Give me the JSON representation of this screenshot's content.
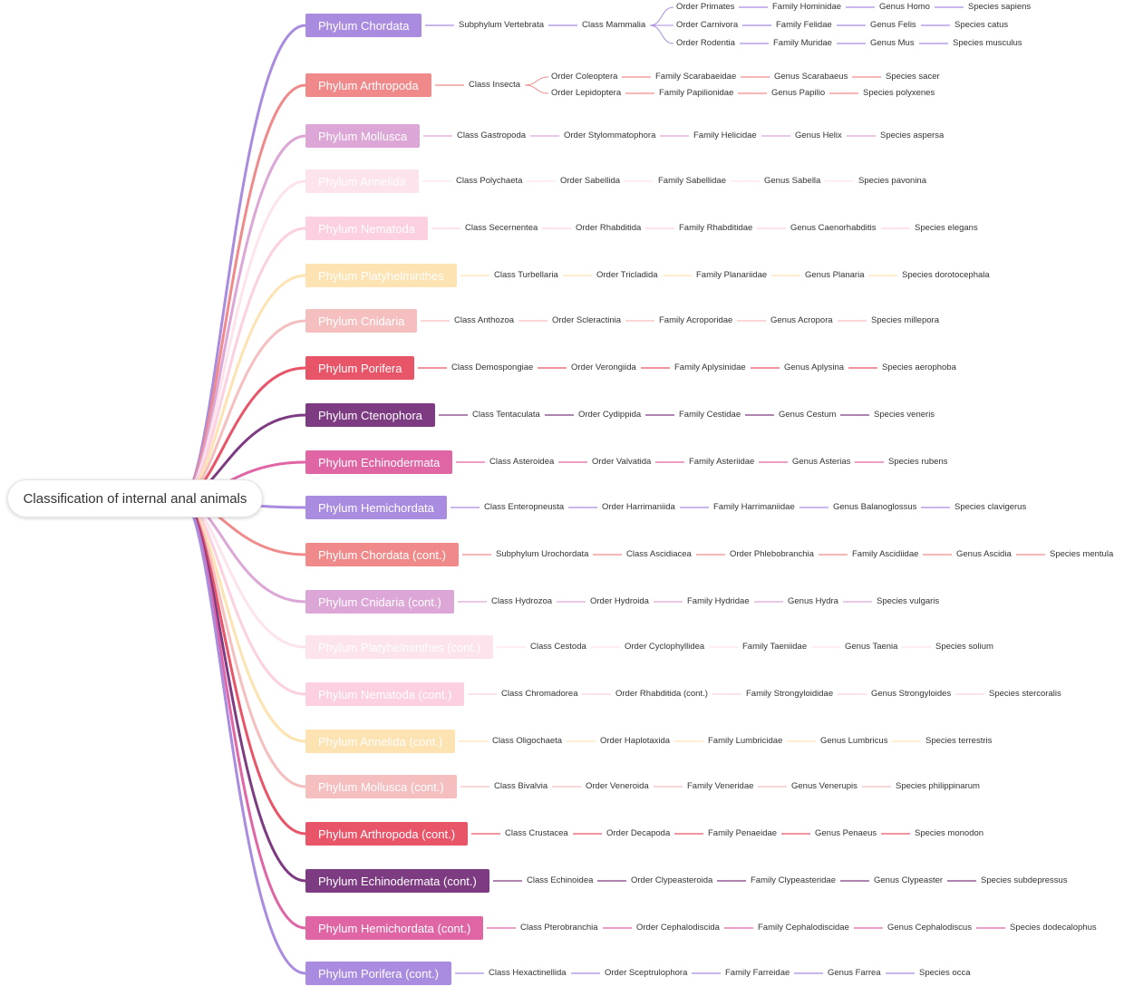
{
  "root": {
    "label": "Classification of internal anal animals"
  },
  "colors": {
    "c1": "#a98be0",
    "c2": "#f08a8a",
    "c3": "#dca6d6",
    "c4": "#fde3ec",
    "c5": "#fcd0e0",
    "c6": "#fde2b2",
    "c7": "#f5bfbf",
    "c8": "#e85468",
    "c9": "#7d3c82",
    "c10": "#e065a5"
  },
  "branches": [
    {
      "label": "Phylum Chordata",
      "color": "#a98be0",
      "chain": [
        "Subphylum Vertebrata",
        "Class Mammalia"
      ],
      "fork": [
        [
          "Order Primates",
          "Family Hominidae",
          "Genus Homo",
          "Species sapiens"
        ],
        [
          "Order Carnivora",
          "Family Felidae",
          "Genus Felis",
          "Species catus"
        ],
        [
          "Order Rodentia",
          "Family Muridae",
          "Genus Mus",
          "Species musculus"
        ]
      ]
    },
    {
      "label": "Phylum Arthropoda",
      "color": "#f08a8a",
      "chain": [
        "Class Insecta"
      ],
      "fork": [
        [
          "Order Coleoptera",
          "Family Scarabaeidae",
          "Genus Scarabaeus",
          "Species sacer"
        ],
        [
          "Order Lepidoptera",
          "Family Papilionidae",
          "Genus Papilio",
          "Species polyxenes"
        ]
      ]
    },
    {
      "label": "Phylum Mollusca",
      "color": "#dca6d6",
      "chain": [
        "Class Gastropoda",
        "Order Stylommatophora",
        "Family Helicidae",
        "Genus Helix",
        "Species aspersa"
      ]
    },
    {
      "label": "Phylum Annelida",
      "color": "#fde3ec",
      "chain": [
        "Class Polychaeta",
        "Order Sabellida",
        "Family Sabellidae",
        "Genus Sabella",
        "Species pavonina"
      ]
    },
    {
      "label": "Phylum Nematoda",
      "color": "#fcd0e0",
      "chain": [
        "Class Secernentea",
        "Order Rhabditida",
        "Family Rhabditidae",
        "Genus Caenorhabditis",
        "Species elegans"
      ]
    },
    {
      "label": "Phylum Platyhelminthes",
      "color": "#fde2b2",
      "chain": [
        "Class Turbellaria",
        "Order Tricladida",
        "Family Planariidae",
        "Genus Planaria",
        "Species dorotocephala"
      ]
    },
    {
      "label": "Phylum Cnidaria",
      "color": "#f5bfbf",
      "chain": [
        "Class Anthozoa",
        "Order Scleractinia",
        "Family Acroporidae",
        "Genus Acropora",
        "Species millepora"
      ]
    },
    {
      "label": "Phylum Porifera",
      "color": "#e85468",
      "chain": [
        "Class Demospongiae",
        "Order Verongiida",
        "Family Aplysinidae",
        "Genus Aplysina",
        "Species aerophoba"
      ]
    },
    {
      "label": "Phylum Ctenophora",
      "color": "#7d3c82",
      "chain": [
        "Class Tentaculata",
        "Order Cydippida",
        "Family Cestidae",
        "Genus Cestum",
        "Species veneris"
      ]
    },
    {
      "label": "Phylum Echinodermata",
      "color": "#e065a5",
      "chain": [
        "Class Asteroidea",
        "Order Valvatida",
        "Family Asteriidae",
        "Genus Asterias",
        "Species rubens"
      ]
    },
    {
      "label": "Phylum Hemichordata",
      "color": "#a98be0",
      "chain": [
        "Class Enteropneusta",
        "Order Harrimaniida",
        "Family Harrimaniidae",
        "Genus Balanoglossus",
        "Species clavigerus"
      ]
    },
    {
      "label": "Phylum Chordata (cont.)",
      "color": "#f08a8a",
      "chain": [
        "Subphylum Urochordata",
        "Class Ascidiacea",
        "Order Phlebobranchia",
        "Family Ascidiidae",
        "Genus Ascidia",
        "Species mentula"
      ]
    },
    {
      "label": "Phylum Cnidaria (cont.)",
      "color": "#dca6d6",
      "chain": [
        "Class Hydrozoa",
        "Order Hydroida",
        "Family Hydridae",
        "Genus Hydra",
        "Species vulgaris"
      ]
    },
    {
      "label": "Phylum Platyhelminthes (cont.)",
      "color": "#fde3ec",
      "chain": [
        "Class Cestoda",
        "Order Cyclophyllidea",
        "Family Taeniidae",
        "Genus Taenia",
        "Species solium"
      ]
    },
    {
      "label": "Phylum Nematoda (cont.)",
      "color": "#fcd0e0",
      "chain": [
        "Class Chromadorea",
        "Order Rhabditida (cont.)",
        "Family Strongyloididae",
        "Genus Strongyloides",
        "Species stercoralis"
      ]
    },
    {
      "label": "Phylum Annelida (cont.)",
      "color": "#fde2b2",
      "chain": [
        "Class Oligochaeta",
        "Order Haplotaxida",
        "Family Lumbricidae",
        "Genus Lumbricus",
        "Species terrestris"
      ]
    },
    {
      "label": "Phylum Mollusca (cont.)",
      "color": "#f5bfbf",
      "chain": [
        "Class Bivalvia",
        "Order Veneroida",
        "Family Veneridae",
        "Genus Venerupis",
        "Species philippinarum"
      ]
    },
    {
      "label": "Phylum Arthropoda (cont.)",
      "color": "#e85468",
      "chain": [
        "Class Crustacea",
        "Order Decapoda",
        "Family Penaeidae",
        "Genus Penaeus",
        "Species monodon"
      ]
    },
    {
      "label": "Phylum Echinodermata (cont.)",
      "color": "#7d3c82",
      "chain": [
        "Class Echinoidea",
        "Order Clypeasteroida",
        "Family Clypeasteridae",
        "Genus Clypeaster",
        "Species subdepressus"
      ]
    },
    {
      "label": "Phylum Hemichordata (cont.)",
      "color": "#e065a5",
      "chain": [
        "Class Pterobranchia",
        "Order Cephalodiscida",
        "Family Cephalodiscidae",
        "Genus Cephalodiscus",
        "Species dodecalophus"
      ]
    },
    {
      "label": "Phylum Porifera (cont.)",
      "color": "#a98be0",
      "chain": [
        "Class Hexactinellida",
        "Order Sceptrulophora",
        "Family Farreidae",
        "Genus Farrea",
        "Species occa"
      ]
    }
  ]
}
